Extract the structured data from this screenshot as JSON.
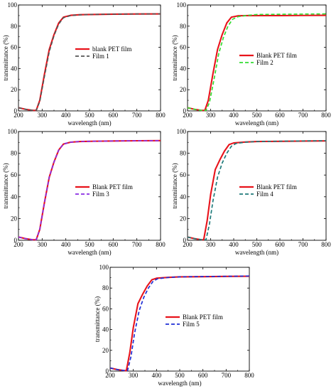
{
  "chart_data": [
    {
      "type": "line",
      "panel": "1",
      "xlabel": "wavelength (nm)",
      "ylabel": "transmittance (%)",
      "xlim": [
        200,
        800
      ],
      "ylim": [
        0,
        100
      ],
      "x_ticks": [
        "200",
        "300",
        "400",
        "500",
        "600",
        "700",
        "800"
      ],
      "y_ticks": [
        "0",
        "20",
        "40",
        "60",
        "80",
        "100"
      ],
      "legend_position": "center",
      "grid": false,
      "series": [
        {
          "name": "blank PET film",
          "color": "#e8131b",
          "style": "solid",
          "x": [
            200,
            230,
            260,
            275,
            290,
            310,
            330,
            350,
            370,
            390,
            420,
            460,
            500,
            600,
            700,
            800
          ],
          "y": [
            3,
            1.5,
            0.5,
            0.5,
            10,
            35,
            58,
            72,
            83,
            88.5,
            90.2,
            90.8,
            91.0,
            91.3,
            91.5,
            91.6
          ]
        },
        {
          "name": "Film 1",
          "color": "#555555",
          "style": "dashed",
          "x": [
            200,
            230,
            260,
            275,
            290,
            310,
            330,
            350,
            370,
            390,
            420,
            460,
            500,
            600,
            700,
            800
          ],
          "y": [
            3,
            1.5,
            0.5,
            0.5,
            9,
            33,
            56,
            71,
            82,
            88,
            90,
            90.7,
            91.0,
            91.3,
            91.5,
            91.6
          ]
        }
      ]
    },
    {
      "type": "line",
      "panel": "2",
      "xlabel": "wavelength (nm)",
      "ylabel": "transmittance (%)",
      "xlim": [
        200,
        800
      ],
      "ylim": [
        0,
        100
      ],
      "x_ticks": [
        "200",
        "300",
        "400",
        "500",
        "600",
        "700",
        "800"
      ],
      "y_ticks": [
        "0",
        "20",
        "40",
        "60",
        "80",
        "100"
      ],
      "legend_position": "center",
      "grid": false,
      "series": [
        {
          "name": "Blank PET film",
          "color": "#e8131b",
          "style": "solid",
          "x": [
            200,
            230,
            260,
            275,
            290,
            310,
            330,
            350,
            370,
            390,
            420,
            460,
            500,
            600,
            700,
            800
          ],
          "y": [
            3,
            1.5,
            0.5,
            0.5,
            10,
            35,
            58,
            72,
            83,
            88.5,
            89.8,
            90.0,
            90.0,
            90.0,
            90.1,
            90.2
          ]
        },
        {
          "name": "Film 2",
          "color": "#33dd33",
          "style": "dashed",
          "x": [
            200,
            230,
            260,
            280,
            295,
            315,
            335,
            355,
            375,
            395,
            420,
            460,
            500,
            600,
            700,
            800
          ],
          "y": [
            3,
            1.5,
            0.5,
            0.5,
            8,
            30,
            54,
            69,
            80,
            86.5,
            89,
            90.2,
            91.0,
            91.2,
            91.4,
            91.6
          ]
        }
      ]
    },
    {
      "type": "line",
      "panel": "3",
      "xlabel": "wavelength (nm)",
      "ylabel": "transmittance (%)",
      "xlim": [
        200,
        800
      ],
      "ylim": [
        0,
        100
      ],
      "x_ticks": [
        "200",
        "300",
        "400",
        "500",
        "600",
        "700",
        "800"
      ],
      "y_ticks": [
        "0",
        "20",
        "40",
        "60",
        "80",
        "100"
      ],
      "legend_position": "center",
      "grid": false,
      "series": [
        {
          "name": "Blank PET film",
          "color": "#e8131b",
          "style": "solid",
          "x": [
            200,
            230,
            260,
            275,
            290,
            310,
            330,
            350,
            370,
            390,
            420,
            460,
            500,
            600,
            700,
            800
          ],
          "y": [
            3,
            1.5,
            0.5,
            0.5,
            10,
            35,
            58,
            72,
            83,
            88.5,
            90.2,
            90.8,
            91.0,
            91.3,
            91.5,
            91.6
          ]
        },
        {
          "name": "Film 3",
          "color": "#8a2be2",
          "style": "dashed",
          "x": [
            200,
            230,
            260,
            275,
            290,
            310,
            330,
            350,
            370,
            390,
            420,
            460,
            500,
            600,
            700,
            800
          ],
          "y": [
            3,
            1.5,
            0.5,
            0.5,
            10,
            35,
            58,
            72,
            83,
            88.5,
            90.2,
            90.8,
            91.0,
            91.3,
            91.5,
            91.6
          ]
        }
      ]
    },
    {
      "type": "line",
      "panel": "4",
      "xlabel": "wavelength (nm)",
      "ylabel": "transmittance (%)",
      "xlim": [
        200,
        800
      ],
      "ylim": [
        0,
        100
      ],
      "x_ticks": [
        "200",
        "300",
        "400",
        "500",
        "600",
        "700",
        "800"
      ],
      "y_ticks": [
        "0",
        "20",
        "40",
        "60",
        "80",
        "100"
      ],
      "legend_position": "center",
      "grid": false,
      "series": [
        {
          "name": "Blank PET film",
          "color": "#e8131b",
          "style": "solid",
          "x": [
            200,
            230,
            260,
            270,
            285,
            300,
            320,
            340,
            360,
            380,
            400,
            450,
            500,
            600,
            700,
            800
          ],
          "y": [
            3,
            1.5,
            0.5,
            0.5,
            18,
            42,
            65,
            74,
            82,
            88,
            89.5,
            90.3,
            90.8,
            91.0,
            91.2,
            91.4
          ]
        },
        {
          "name": "Film 4",
          "color": "#1f7a7a",
          "style": "dashed",
          "x": [
            200,
            230,
            260,
            280,
            295,
            310,
            330,
            350,
            370,
            390,
            410,
            450,
            500,
            600,
            700,
            800
          ],
          "y": [
            3,
            1.5,
            0.5,
            0.5,
            15,
            36,
            58,
            71,
            80,
            86.5,
            89,
            90.2,
            90.8,
            91.1,
            91.3,
            91.6
          ]
        }
      ]
    },
    {
      "type": "line",
      "panel": "5",
      "xlabel": "wavelength (nm)",
      "ylabel": "transmittance (%)",
      "xlim": [
        200,
        800
      ],
      "ylim": [
        0,
        100
      ],
      "x_ticks": [
        "200",
        "300",
        "400",
        "500",
        "600",
        "700",
        "800"
      ],
      "y_ticks": [
        "0",
        "20",
        "40",
        "60",
        "80",
        "100"
      ],
      "legend_position": "center",
      "grid": false,
      "series": [
        {
          "name": "Blank PET film",
          "color": "#e8131b",
          "style": "solid",
          "x": [
            200,
            230,
            260,
            270,
            285,
            300,
            320,
            340,
            360,
            380,
            400,
            450,
            500,
            600,
            700,
            800
          ],
          "y": [
            3,
            1.5,
            0.5,
            0.5,
            18,
            42,
            65,
            74,
            82,
            88,
            89.5,
            90.3,
            90.8,
            91.0,
            91.2,
            91.4
          ]
        },
        {
          "name": "Film 5",
          "color": "#1f2fd6",
          "style": "dashed",
          "x": [
            200,
            230,
            260,
            275,
            290,
            305,
            325,
            345,
            365,
            385,
            405,
            450,
            500,
            600,
            700,
            800
          ],
          "y": [
            3,
            1.5,
            0.5,
            0.5,
            14,
            36,
            58,
            71,
            80,
            86.5,
            89,
            90.2,
            90.8,
            91.1,
            91.3,
            91.6
          ]
        }
      ]
    }
  ]
}
